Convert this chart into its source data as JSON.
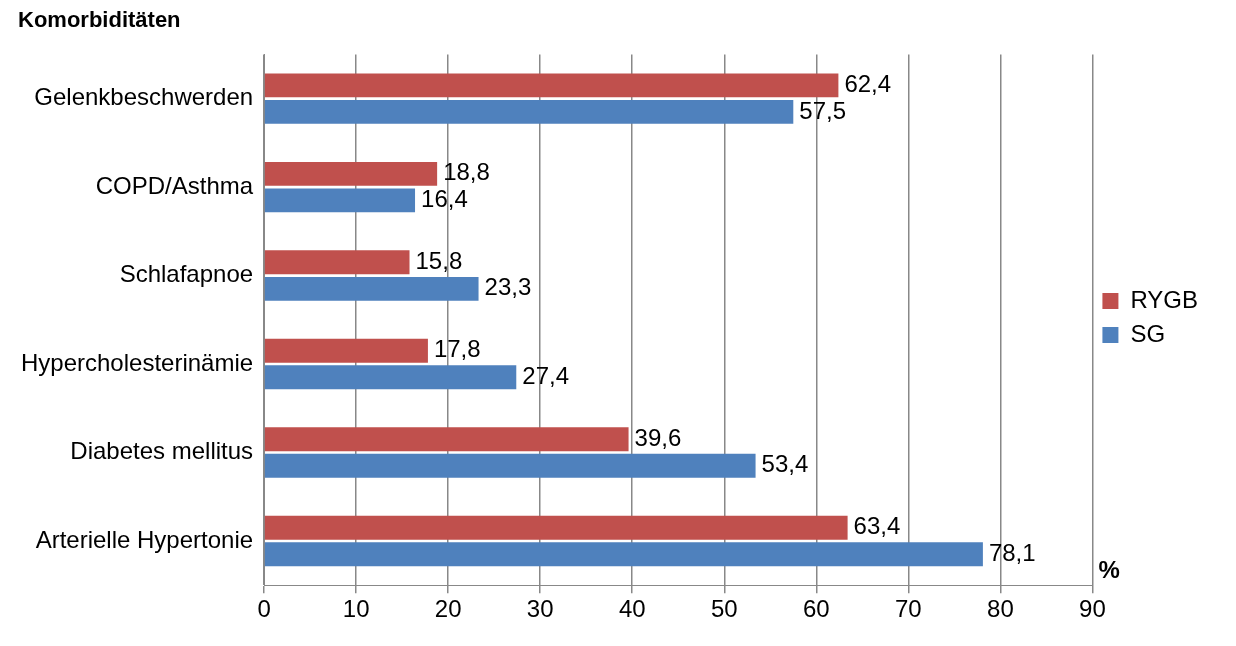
{
  "chart_data": {
    "type": "bar",
    "orientation": "horizontal",
    "title": "Komorbiditäten",
    "xlabel": "%",
    "categories": [
      "Gelenkbeschwerden",
      "COPD/Asthma",
      "Schlafapnoe",
      "Hypercholesterinämie",
      "Diabetes mellitus",
      "Arterielle Hypertonie"
    ],
    "series": [
      {
        "name": "RYGB",
        "color": "#c0504d",
        "values": [
          62.4,
          18.8,
          15.8,
          17.8,
          39.6,
          63.4
        ],
        "value_labels": [
          "62,4",
          "18,8",
          "15,8",
          "17,8",
          "39,6",
          "63,4"
        ]
      },
      {
        "name": "SG",
        "color": "#4f81bd",
        "values": [
          57.5,
          16.4,
          23.3,
          27.4,
          53.4,
          78.1
        ],
        "value_labels": [
          "57,5",
          "16,4",
          "23,3",
          "27,4",
          "53,4",
          "78,1"
        ]
      }
    ],
    "xlim": [
      0,
      90
    ],
    "xticks": [
      0,
      10,
      20,
      30,
      40,
      50,
      60,
      70,
      80,
      90
    ],
    "grid": "x",
    "legend": "right"
  }
}
